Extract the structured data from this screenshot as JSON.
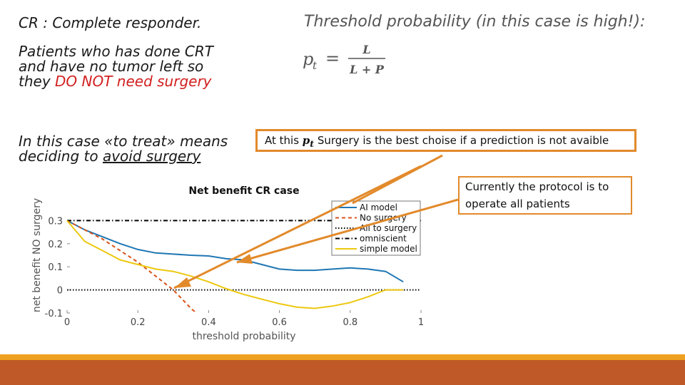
{
  "text": {
    "definition": "CR : Complete responder.",
    "patients_line1": "Patients who has done CRT",
    "patients_line2": "and have no tumor left so",
    "patients_line3_pre": "they ",
    "patients_line3_red": "DO NOT need surgery",
    "treat_line1": "In this case «to treat» means",
    "treat_line2_pre": "deciding to ",
    "treat_line2_ul": "avoid surgery",
    "threshold_heading": "Threshold probability (in this case is high!):",
    "callout1_pre": "At this ",
    "callout1_post": " Surgery is the best choise if a prediction is not avaible",
    "callout2_line1": "Currently the protocol is to",
    "callout2_line2": "operate all patients"
  },
  "formula": {
    "lhs": "p",
    "sub": "t",
    "eq": "=",
    "num": "L",
    "den": "L + P"
  },
  "colors": {
    "accent": "#e28a2b",
    "red_text": "#d22020",
    "ai_model": "#1f77b4",
    "no_surgery": "#d95319",
    "simple_model": "#edc80f",
    "footer_top": "#f0a020",
    "footer_bottom": "#bf5a28"
  },
  "chart_data": {
    "type": "line",
    "title": "Net benefit CR case",
    "xlabel": "threshold probability",
    "ylabel": "net benefit NO surgery",
    "xlim": [
      0,
      1
    ],
    "ylim": [
      -0.1,
      0.4
    ],
    "xticks": [
      0,
      0.2,
      0.4,
      0.6,
      0.8,
      1
    ],
    "xtick_labels": [
      "0",
      "0.2",
      "0.4",
      "0.6",
      "0.8",
      "1"
    ],
    "yticks": [
      -0.1,
      0,
      0.1,
      0.2,
      0.3
    ],
    "ytick_labels": [
      "-0.1",
      "0",
      "0.1",
      "0.2",
      "0.3"
    ],
    "legend_position": "top-right",
    "series": [
      {
        "name": "AI model",
        "style": "solid",
        "color": "#1f77b4",
        "x": [
          0,
          0.05,
          0.1,
          0.15,
          0.2,
          0.25,
          0.3,
          0.35,
          0.4,
          0.45,
          0.5,
          0.55,
          0.6,
          0.65,
          0.7,
          0.75,
          0.8,
          0.85,
          0.9,
          0.95
        ],
        "y": [
          0.3,
          0.26,
          0.23,
          0.2,
          0.175,
          0.16,
          0.155,
          0.15,
          0.147,
          0.135,
          0.13,
          0.11,
          0.09,
          0.085,
          0.085,
          0.09,
          0.095,
          0.09,
          0.08,
          0.035
        ]
      },
      {
        "name": "No surgery",
        "style": "dashed",
        "color": "#d95319",
        "x": [
          0,
          0.05,
          0.1,
          0.15,
          0.2,
          0.25,
          0.3,
          0.35,
          0.365
        ],
        "y": [
          0.3,
          0.26,
          0.22,
          0.17,
          0.12,
          0.06,
          0,
          -0.08,
          -0.1
        ]
      },
      {
        "name": "All to surgery",
        "style": "dotted",
        "color": "#000000",
        "x": [
          0,
          1
        ],
        "y": [
          0,
          0
        ]
      },
      {
        "name": "omniscient",
        "style": "dashdot",
        "color": "#000000",
        "x": [
          0,
          1
        ],
        "y": [
          0.3,
          0.3
        ]
      },
      {
        "name": "simple model",
        "style": "solid",
        "color": "#edc80f",
        "x": [
          0,
          0.05,
          0.1,
          0.15,
          0.2,
          0.25,
          0.3,
          0.35,
          0.4,
          0.45,
          0.5,
          0.55,
          0.6,
          0.65,
          0.7,
          0.75,
          0.8,
          0.85,
          0.9,
          0.95
        ],
        "y": [
          0.3,
          0.21,
          0.17,
          0.13,
          0.11,
          0.09,
          0.08,
          0.06,
          0.035,
          0.005,
          -0.02,
          -0.04,
          -0.06,
          -0.075,
          -0.08,
          -0.07,
          -0.055,
          -0.03,
          0,
          0
        ]
      }
    ]
  }
}
